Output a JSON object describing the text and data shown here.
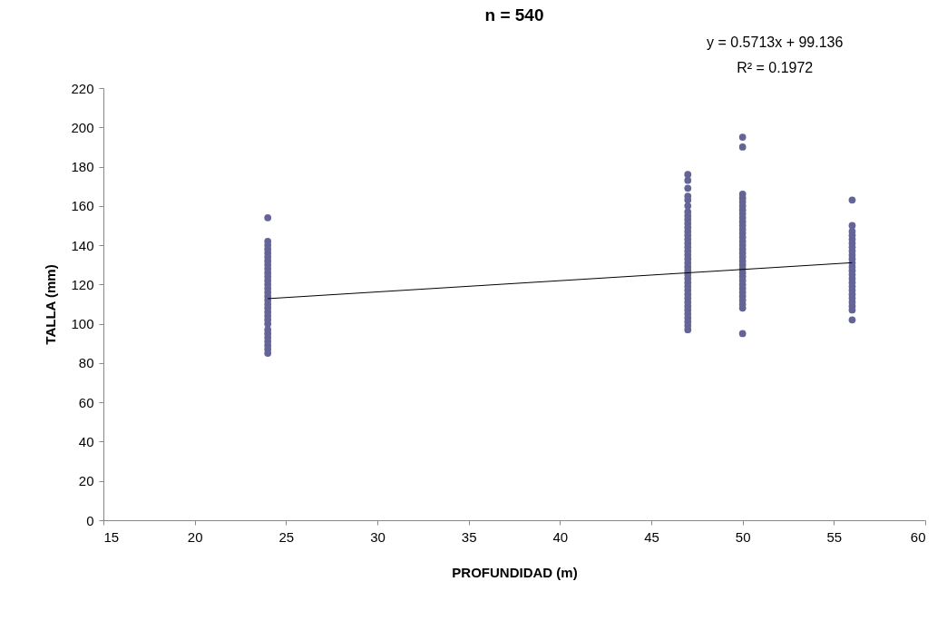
{
  "chart_data": {
    "type": "scatter",
    "title": "n = 540",
    "xlabel": "PROFUNDIDAD (m)",
    "ylabel": "TALLA (mm)",
    "annotations": [
      "y = 0.5713x + 99.136",
      "R² = 0.1972"
    ],
    "xlim": [
      15,
      60
    ],
    "xticks": [
      15,
      20,
      25,
      30,
      35,
      40,
      45,
      50,
      55,
      60
    ],
    "ylim": [
      0,
      220
    ],
    "yticks": [
      0,
      20,
      40,
      60,
      80,
      100,
      120,
      140,
      160,
      180,
      200,
      220
    ],
    "grid": false,
    "series": [
      {
        "color": "#646496",
        "marker": "circle",
        "x": [
          24,
          24,
          24,
          24,
          24,
          24,
          24,
          24,
          24,
          24,
          24,
          24,
          24,
          24,
          24,
          24,
          24,
          24,
          24,
          24,
          24,
          24,
          24,
          24,
          24,
          24,
          24,
          24,
          24,
          24,
          47,
          47,
          47,
          47,
          47,
          47,
          47,
          47,
          47,
          47,
          47,
          47,
          47,
          47,
          47,
          47,
          47,
          47,
          47,
          47,
          47,
          47,
          47,
          47,
          47,
          47,
          47,
          47,
          47,
          47,
          47,
          47,
          47,
          47,
          47,
          47,
          47,
          50,
          50,
          50,
          50,
          50,
          50,
          50,
          50,
          50,
          50,
          50,
          50,
          50,
          50,
          50,
          50,
          50,
          50,
          50,
          50,
          50,
          50,
          50,
          50,
          50,
          50,
          50,
          50,
          50,
          50,
          50,
          50,
          50,
          56,
          56,
          56,
          56,
          56,
          56,
          56,
          56,
          56,
          56,
          56,
          56,
          56,
          56,
          56,
          56,
          56,
          56,
          56,
          56,
          56,
          56,
          56,
          56
        ],
        "values": [
          85,
          87,
          89,
          91,
          93,
          95,
          97,
          100,
          102,
          104,
          106,
          108,
          110,
          112,
          114,
          116,
          118,
          120,
          122,
          124,
          126,
          128,
          130,
          132,
          134,
          136,
          138,
          140,
          142,
          154,
          97,
          99,
          101,
          103,
          105,
          107,
          109,
          111,
          113,
          115,
          117,
          119,
          121,
          123,
          125,
          127,
          129,
          131,
          133,
          135,
          137,
          139,
          141,
          143,
          145,
          147,
          149,
          151,
          153,
          155,
          157,
          160,
          163,
          165,
          169,
          173,
          176,
          95,
          108,
          110,
          112,
          114,
          116,
          118,
          120,
          122,
          124,
          126,
          128,
          130,
          132,
          134,
          136,
          138,
          140,
          142,
          144,
          146,
          148,
          150,
          152,
          154,
          156,
          158,
          160,
          162,
          164,
          166,
          190,
          195,
          102,
          107,
          109,
          111,
          113,
          115,
          117,
          119,
          121,
          123,
          125,
          127,
          129,
          131,
          133,
          135,
          137,
          139,
          141,
          143,
          145,
          147,
          150,
          163
        ]
      },
      {
        "type": "line",
        "color": "#000000",
        "x": [
          24,
          56
        ],
        "values": [
          112.8,
          131.1
        ]
      }
    ]
  }
}
